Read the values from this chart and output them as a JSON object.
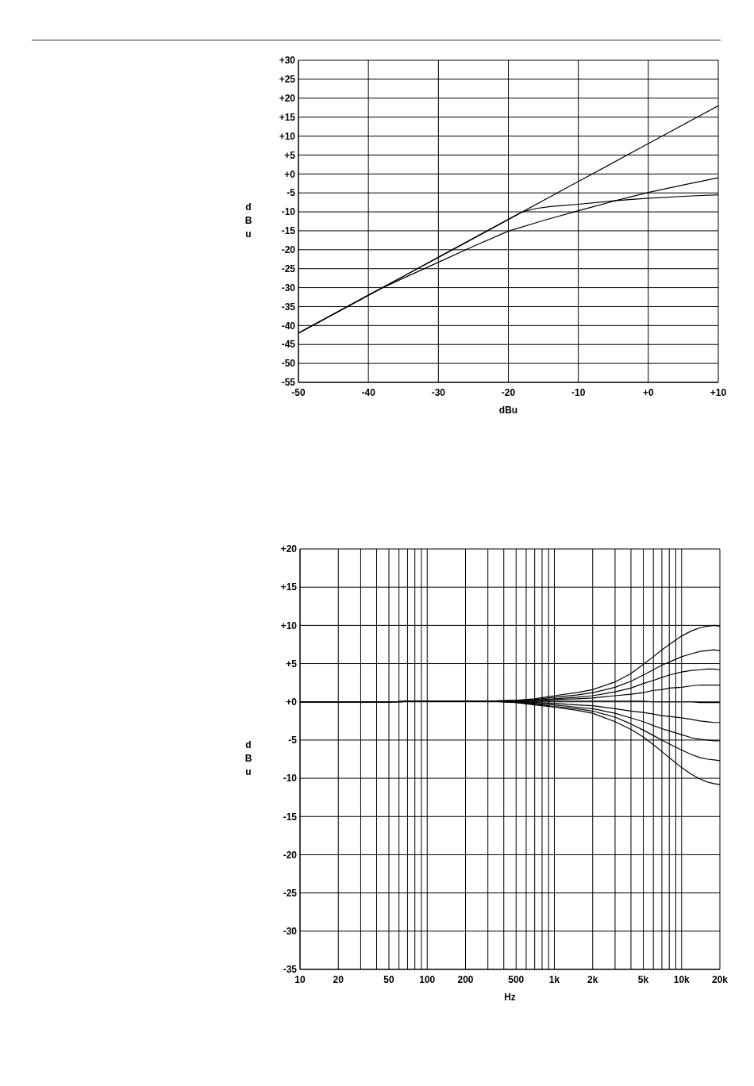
{
  "chart_data": [
    {
      "type": "line",
      "xlabel": "dBu",
      "ylabel": "dBu",
      "xlim": [
        -50,
        10
      ],
      "ylim": [
        -55,
        30
      ],
      "xticks": [
        -50,
        -40,
        -30,
        -20,
        -10,
        {
          "value": 0,
          "label": "+0"
        },
        {
          "value": 10,
          "label": "+10"
        }
      ],
      "yticks": [
        {
          "value": 30,
          "label": "+30"
        },
        {
          "value": 25,
          "label": "+25"
        },
        {
          "value": 20,
          "label": "+20"
        },
        {
          "value": 15,
          "label": "+15"
        },
        {
          "value": 10,
          "label": "+10"
        },
        {
          "value": 5,
          "label": "+5"
        },
        {
          "value": 0,
          "label": "+0"
        },
        -5,
        -10,
        -15,
        -20,
        -25,
        -30,
        -35,
        -40,
        -45,
        -50,
        -55
      ],
      "grid": true,
      "series": [
        {
          "color": "#000000",
          "x": [
            -50,
            -40,
            -30,
            -20,
            -10,
            0,
            10
          ],
          "values": [
            -42,
            -32,
            -22,
            -12,
            -2,
            8,
            18
          ]
        },
        {
          "color": "#000000",
          "x": [
            -50,
            -40,
            -30,
            -20,
            -18,
            -16,
            -14,
            -12,
            -10,
            -5,
            0,
            5,
            10
          ],
          "values": [
            -42,
            -32,
            -22,
            -12,
            -10,
            -9.1,
            -8.6,
            -8.3,
            -8.0,
            -7.1,
            -6.4,
            -5.9,
            -5.5
          ]
        },
        {
          "color": "#000000",
          "x": [
            -50,
            -40,
            -38,
            -35,
            -30,
            -25,
            -20,
            -15,
            -10,
            -5,
            0,
            5,
            10
          ],
          "values": [
            -42,
            -32,
            -30.1,
            -27.5,
            -23.3,
            -19.1,
            -15.1,
            -12.3,
            -9.7,
            -7.2,
            -4.9,
            -2.9,
            -1.0
          ]
        }
      ]
    },
    {
      "type": "line",
      "xlabel": "Hz",
      "ylabel": "dBu",
      "log": "x",
      "xlim": [
        10,
        20000
      ],
      "ylim": [
        -35,
        20
      ],
      "xticks": [
        10,
        20,
        {
          "value": 30,
          "label": null
        },
        {
          "value": 40,
          "label": null
        },
        50,
        {
          "value": 60,
          "label": null
        },
        {
          "value": 70,
          "label": null
        },
        {
          "value": 80,
          "label": null
        },
        {
          "value": 90,
          "label": null
        },
        100,
        200,
        {
          "value": 300,
          "label": null
        },
        {
          "value": 400,
          "label": null
        },
        500,
        {
          "value": 600,
          "label": null
        },
        {
          "value": 700,
          "label": null
        },
        {
          "value": 800,
          "label": null
        },
        {
          "value": 900,
          "label": null
        },
        {
          "value": 1000,
          "label": "1k"
        },
        {
          "value": 2000,
          "label": "2k"
        },
        {
          "value": 3000,
          "label": null
        },
        {
          "value": 4000,
          "label": null
        },
        {
          "value": 5000,
          "label": "5k"
        },
        {
          "value": 6000,
          "label": null
        },
        {
          "value": 7000,
          "label": null
        },
        {
          "value": 8000,
          "label": null
        },
        {
          "value": 9000,
          "label": null
        },
        {
          "value": 10000,
          "label": "10k"
        },
        {
          "value": 20000,
          "label": "20k"
        }
      ],
      "yticks": [
        {
          "value": 20,
          "label": "+20"
        },
        {
          "value": 15,
          "label": "+15"
        },
        {
          "value": 10,
          "label": "+10"
        },
        {
          "value": 5,
          "label": "+5"
        },
        {
          "value": 0,
          "label": "+0"
        },
        -5,
        -10,
        -15,
        -20,
        -25,
        -30,
        -35
      ],
      "grid": true,
      "x": [
        10,
        20,
        50,
        100,
        200,
        300,
        500,
        700,
        1000,
        1500,
        2000,
        3000,
        4000,
        5000,
        6000,
        7000,
        8000,
        10000,
        12000,
        14000,
        16000,
        18000,
        20000
      ],
      "series": [
        {
          "color": "#000000",
          "values": [
            0,
            0,
            0,
            0.1,
            0.1,
            0.1,
            0.2,
            0.4,
            0.8,
            1.2,
            1.6,
            2.6,
            3.7,
            4.9,
            5.9,
            6.8,
            7.5,
            8.6,
            9.3,
            9.7,
            9.9,
            10.0,
            9.9
          ]
        },
        {
          "color": "#000000",
          "values": [
            0,
            0,
            0,
            0.1,
            0.1,
            0.1,
            0.2,
            0.3,
            0.6,
            0.9,
            1.2,
            1.9,
            2.7,
            3.5,
            4.2,
            4.8,
            5.2,
            5.9,
            6.3,
            6.6,
            6.7,
            6.8,
            6.7
          ]
        },
        {
          "color": "#000000",
          "values": [
            0,
            0,
            0,
            0.1,
            0.1,
            0.1,
            0.1,
            0.2,
            0.4,
            0.6,
            0.8,
            1.3,
            1.8,
            2.4,
            2.8,
            3.2,
            3.5,
            3.9,
            4.1,
            4.2,
            4.3,
            4.3,
            4.2
          ]
        },
        {
          "color": "#000000",
          "values": [
            0,
            0,
            0,
            0.1,
            0.1,
            0.1,
            0.1,
            0.2,
            0.3,
            0.4,
            0.5,
            0.8,
            1.0,
            1.2,
            1.5,
            1.6,
            1.8,
            1.9,
            2.1,
            2.2,
            2.2,
            2.2,
            2.2
          ]
        },
        {
          "color": "#000000",
          "values": [
            0,
            0,
            0,
            0.1,
            0.1,
            0.1,
            0.1,
            0.1,
            0.1,
            0.1,
            0.1,
            0.1,
            0.1,
            0.1,
            0,
            0,
            0,
            0,
            0,
            -0.1,
            -0.1,
            -0.1,
            -0.1
          ]
        },
        {
          "color": "#000000",
          "values": [
            0,
            0,
            0,
            0.1,
            0.1,
            0.1,
            0,
            -0.1,
            -0.2,
            -0.4,
            -0.5,
            -0.9,
            -1.2,
            -1.4,
            -1.6,
            -1.8,
            -1.9,
            -2.1,
            -2.3,
            -2.5,
            -2.6,
            -2.7,
            -2.7
          ]
        },
        {
          "color": "#000000",
          "values": [
            0,
            0,
            0,
            0.1,
            0.1,
            0.1,
            0,
            -0.2,
            -0.4,
            -0.7,
            -0.9,
            -1.5,
            -2.1,
            -2.6,
            -3.1,
            -3.5,
            -3.8,
            -4.3,
            -4.7,
            -4.9,
            -5.0,
            -5.1,
            -5.1
          ]
        },
        {
          "color": "#000000",
          "values": [
            0,
            0,
            0,
            0.1,
            0.1,
            0.1,
            -0.1,
            -0.3,
            -0.6,
            -0.9,
            -1.2,
            -2.0,
            -2.9,
            -3.7,
            -4.4,
            -5.0,
            -5.5,
            -6.3,
            -6.9,
            -7.3,
            -7.5,
            -7.6,
            -7.7
          ]
        },
        {
          "color": "#000000",
          "values": [
            0,
            0,
            0,
            0.1,
            0.1,
            0.1,
            -0.1,
            -0.4,
            -0.7,
            -1.1,
            -1.5,
            -2.6,
            -3.6,
            -4.6,
            -5.6,
            -6.5,
            -7.3,
            -8.6,
            -9.5,
            -10.1,
            -10.5,
            -10.7,
            -10.8
          ]
        }
      ]
    }
  ]
}
